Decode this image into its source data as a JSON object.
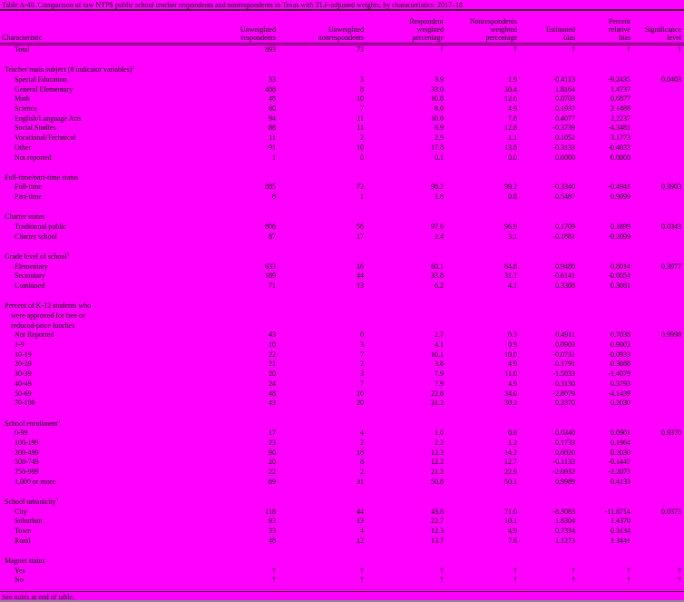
{
  "colors": {
    "background": "#ff00ff",
    "text": "#000000",
    "rule": "#4a0040"
  },
  "title": "Table A-40. Comparison of raw NTPS public school teacher respondents and nonrespondents in Texas with TLF-adjusted weights, by characteristics: 2017–18",
  "header": {
    "characteristic": "Characteristic",
    "columns": [
      [
        "Unweighted",
        "respondents"
      ],
      [
        "Unweighted",
        "nonrespondents"
      ],
      [
        "Respondent",
        "weighted",
        "percentage"
      ],
      [
        "Nonrespondents",
        "weighted",
        "percentage"
      ],
      [
        "Estimated",
        "bias"
      ],
      [
        "Percent",
        "relative",
        "bias"
      ],
      [
        "Significance",
        "level"
      ]
    ]
  },
  "total_row": {
    "label": "Total",
    "values": [
      "893",
      "73",
      "†",
      "†",
      "†",
      "†",
      "†"
    ]
  },
  "sections": [
    {
      "label_lines": [
        "Teacher main subject (8 indicator variables)"
      ],
      "sup": "1",
      "rows": [
        {
          "label": "Special Education",
          "values": [
            "33",
            "3",
            "3.9",
            "1.9",
            "-0.4113",
            "-9.2435",
            "0.0403"
          ]
        },
        {
          "label": "General Elementary",
          "values": [
            "408",
            "8",
            "33.0",
            "30.4",
            "1.8164",
            "1.4737",
            ""
          ]
        },
        {
          "label": "Math",
          "values": [
            "48",
            "10",
            "10.8",
            "12.6",
            "0.0703",
            "0.6877",
            ""
          ]
        },
        {
          "label": "Science",
          "values": [
            "80",
            "7",
            "8.0",
            "4.9",
            "0.1937",
            "2.1488",
            ""
          ]
        },
        {
          "label": "English/Language Arts",
          "values": [
            "94",
            "11",
            "10.0",
            "7.8",
            "0.4077",
            "2.2237",
            ""
          ]
        },
        {
          "label": "Social Studies",
          "values": [
            "88",
            "11",
            "8.9",
            "12.8",
            "-0.3739",
            "-4.3481",
            ""
          ]
        },
        {
          "label": "Vocational/Technical",
          "values": [
            "11",
            "2",
            "2.9",
            "1.1",
            "0.1052",
            "3.1773",
            ""
          ]
        },
        {
          "label": "Other",
          "values": [
            "91",
            "10",
            "17.8",
            "13.8",
            "-0.3133",
            "-0.4033",
            ""
          ]
        },
        {
          "label": "Not reported",
          "values": [
            "1",
            "0",
            "0.1",
            "0.0",
            "0.0000",
            "0.0000",
            ""
          ]
        }
      ]
    },
    {
      "label_lines": [
        "Full-time/part-time status"
      ],
      "rows": [
        {
          "label": "Full-time",
          "values": [
            "885",
            "72",
            "98.2",
            "99.2",
            "-0.3340",
            "-0.4941",
            "0.3903"
          ]
        },
        {
          "label": "Part-time",
          "values": [
            "8",
            "1",
            "1.8",
            "0.8",
            "0.5487",
            "0.9099",
            ""
          ]
        }
      ]
    },
    {
      "label_lines": [
        "Charter status"
      ],
      "rows": [
        {
          "label": "Traditional public",
          "values": [
            "806",
            "56",
            "97.6",
            "96.9",
            "0.1709",
            "0.1899",
            "0.0343"
          ]
        },
        {
          "label": "Charter school",
          "values": [
            "87",
            "17",
            "2.4",
            "3.1",
            "-0.1881",
            "-0.2099",
            ""
          ]
        }
      ]
    },
    {
      "label_lines": [
        "Grade level of school"
      ],
      "sup": "1",
      "rows": [
        {
          "label": "Elementary",
          "values": [
            "633",
            "16",
            "60.1",
            "64.8",
            "0.9480",
            "0.8014",
            "0.3977"
          ]
        },
        {
          "label": "Secondary",
          "values": [
            "189",
            "44",
            "33.8",
            "31.1",
            "-0.6141",
            "-0.0054",
            ""
          ]
        },
        {
          "label": "Combined",
          "values": [
            "71",
            "13",
            "6.2",
            "4.1",
            "0.3308",
            "0.3081",
            ""
          ]
        }
      ]
    },
    {
      "label_lines": [
        "Percent of K-12 students who",
        "were approved for free or",
        "reduced-price lunches"
      ],
      "rows": [
        {
          "label": "Not Reported",
          "values": [
            "43",
            "0",
            "2.7",
            "0.3",
            "0.4911",
            "0.7038",
            "0.9998"
          ]
        },
        {
          "label": "1-9",
          "values": [
            "10",
            "3",
            "4.1",
            "0.9",
            "0.0903",
            "0.9003",
            ""
          ]
        },
        {
          "label": "10-19",
          "values": [
            "22",
            "7",
            "10.1",
            "10.0",
            "-0.0731",
            "-0.0933",
            ""
          ]
        },
        {
          "label": "20-29",
          "values": [
            "21",
            "2",
            "3.8",
            "4.9",
            "0.1791",
            "0.3088",
            ""
          ]
        },
        {
          "label": "30-39",
          "values": [
            "20",
            "3",
            "7.9",
            "11.0",
            "-1.5033",
            "-1.4079",
            ""
          ]
        },
        {
          "label": "40-49",
          "values": [
            "24",
            "7",
            "7.9",
            "4.9",
            "0.3130",
            "0.3793",
            ""
          ]
        },
        {
          "label": "50-69",
          "values": [
            "48",
            "10",
            "22.8",
            "34.0",
            "-2.8079",
            "-4.1439",
            ""
          ]
        },
        {
          "label": "70-100",
          "values": [
            "43",
            "20",
            "31.2",
            "30.2",
            "0.2370",
            "0.2030",
            ""
          ]
        }
      ]
    },
    {
      "label_lines": [
        "School enrollment"
      ],
      "sup": "1",
      "rows": [
        {
          "label": "0-99",
          "values": [
            "17",
            "4",
            "1.0",
            "0.8",
            "0.0340",
            "0.0901",
            "0.9370"
          ]
        },
        {
          "label": "100-199",
          "values": [
            "23",
            "2",
            "2.2",
            "1.2",
            "0.1733",
            "0.1964",
            ""
          ]
        },
        {
          "label": "200-499",
          "values": [
            "90",
            "18",
            "12.2",
            "14.2",
            "0.0020",
            "0.2030",
            ""
          ]
        },
        {
          "label": "500-749",
          "values": [
            "20",
            "8",
            "12.2",
            "12.7",
            "-0.1133",
            "-0.1447",
            ""
          ]
        },
        {
          "label": "750-999",
          "values": [
            "22",
            "2",
            "21.2",
            "22.9",
            "-2.0932",
            "-2.2073",
            ""
          ]
        },
        {
          "label": "1,000 or more",
          "values": [
            "89",
            "31",
            "50.8",
            "50.1",
            "0.9989",
            "0.4133",
            ""
          ]
        }
      ]
    },
    {
      "label_lines": [
        "School urbanicity"
      ],
      "sup": "1",
      "rows": [
        {
          "label": "City",
          "values": [
            "118",
            "44",
            "43.8",
            "71.0",
            "-8.3083",
            "-11.8714",
            "0.0373"
          ]
        },
        {
          "label": "Suburban",
          "values": [
            "93",
            "13",
            "22.7",
            "10.1",
            "1.8304",
            "1.4370",
            ""
          ]
        },
        {
          "label": "Town",
          "values": [
            "33",
            "4",
            "12.3",
            "4.9",
            "0.7334",
            "0.3134",
            ""
          ]
        },
        {
          "label": "Rural",
          "values": [
            "48",
            "12",
            "13.7",
            "7.8",
            "1.1273",
            "1.3441",
            ""
          ]
        }
      ]
    },
    {
      "label_lines": [
        "Magnet status"
      ],
      "rows": [
        {
          "label": "Yes",
          "values": [
            "†",
            "†",
            "†",
            "†",
            "†",
            "†",
            "†"
          ]
        },
        {
          "label": "No",
          "values": [
            "†",
            "†",
            "†",
            "†",
            "†",
            "†",
            "†"
          ]
        }
      ]
    }
  ],
  "footer_note": "See notes at end of table."
}
